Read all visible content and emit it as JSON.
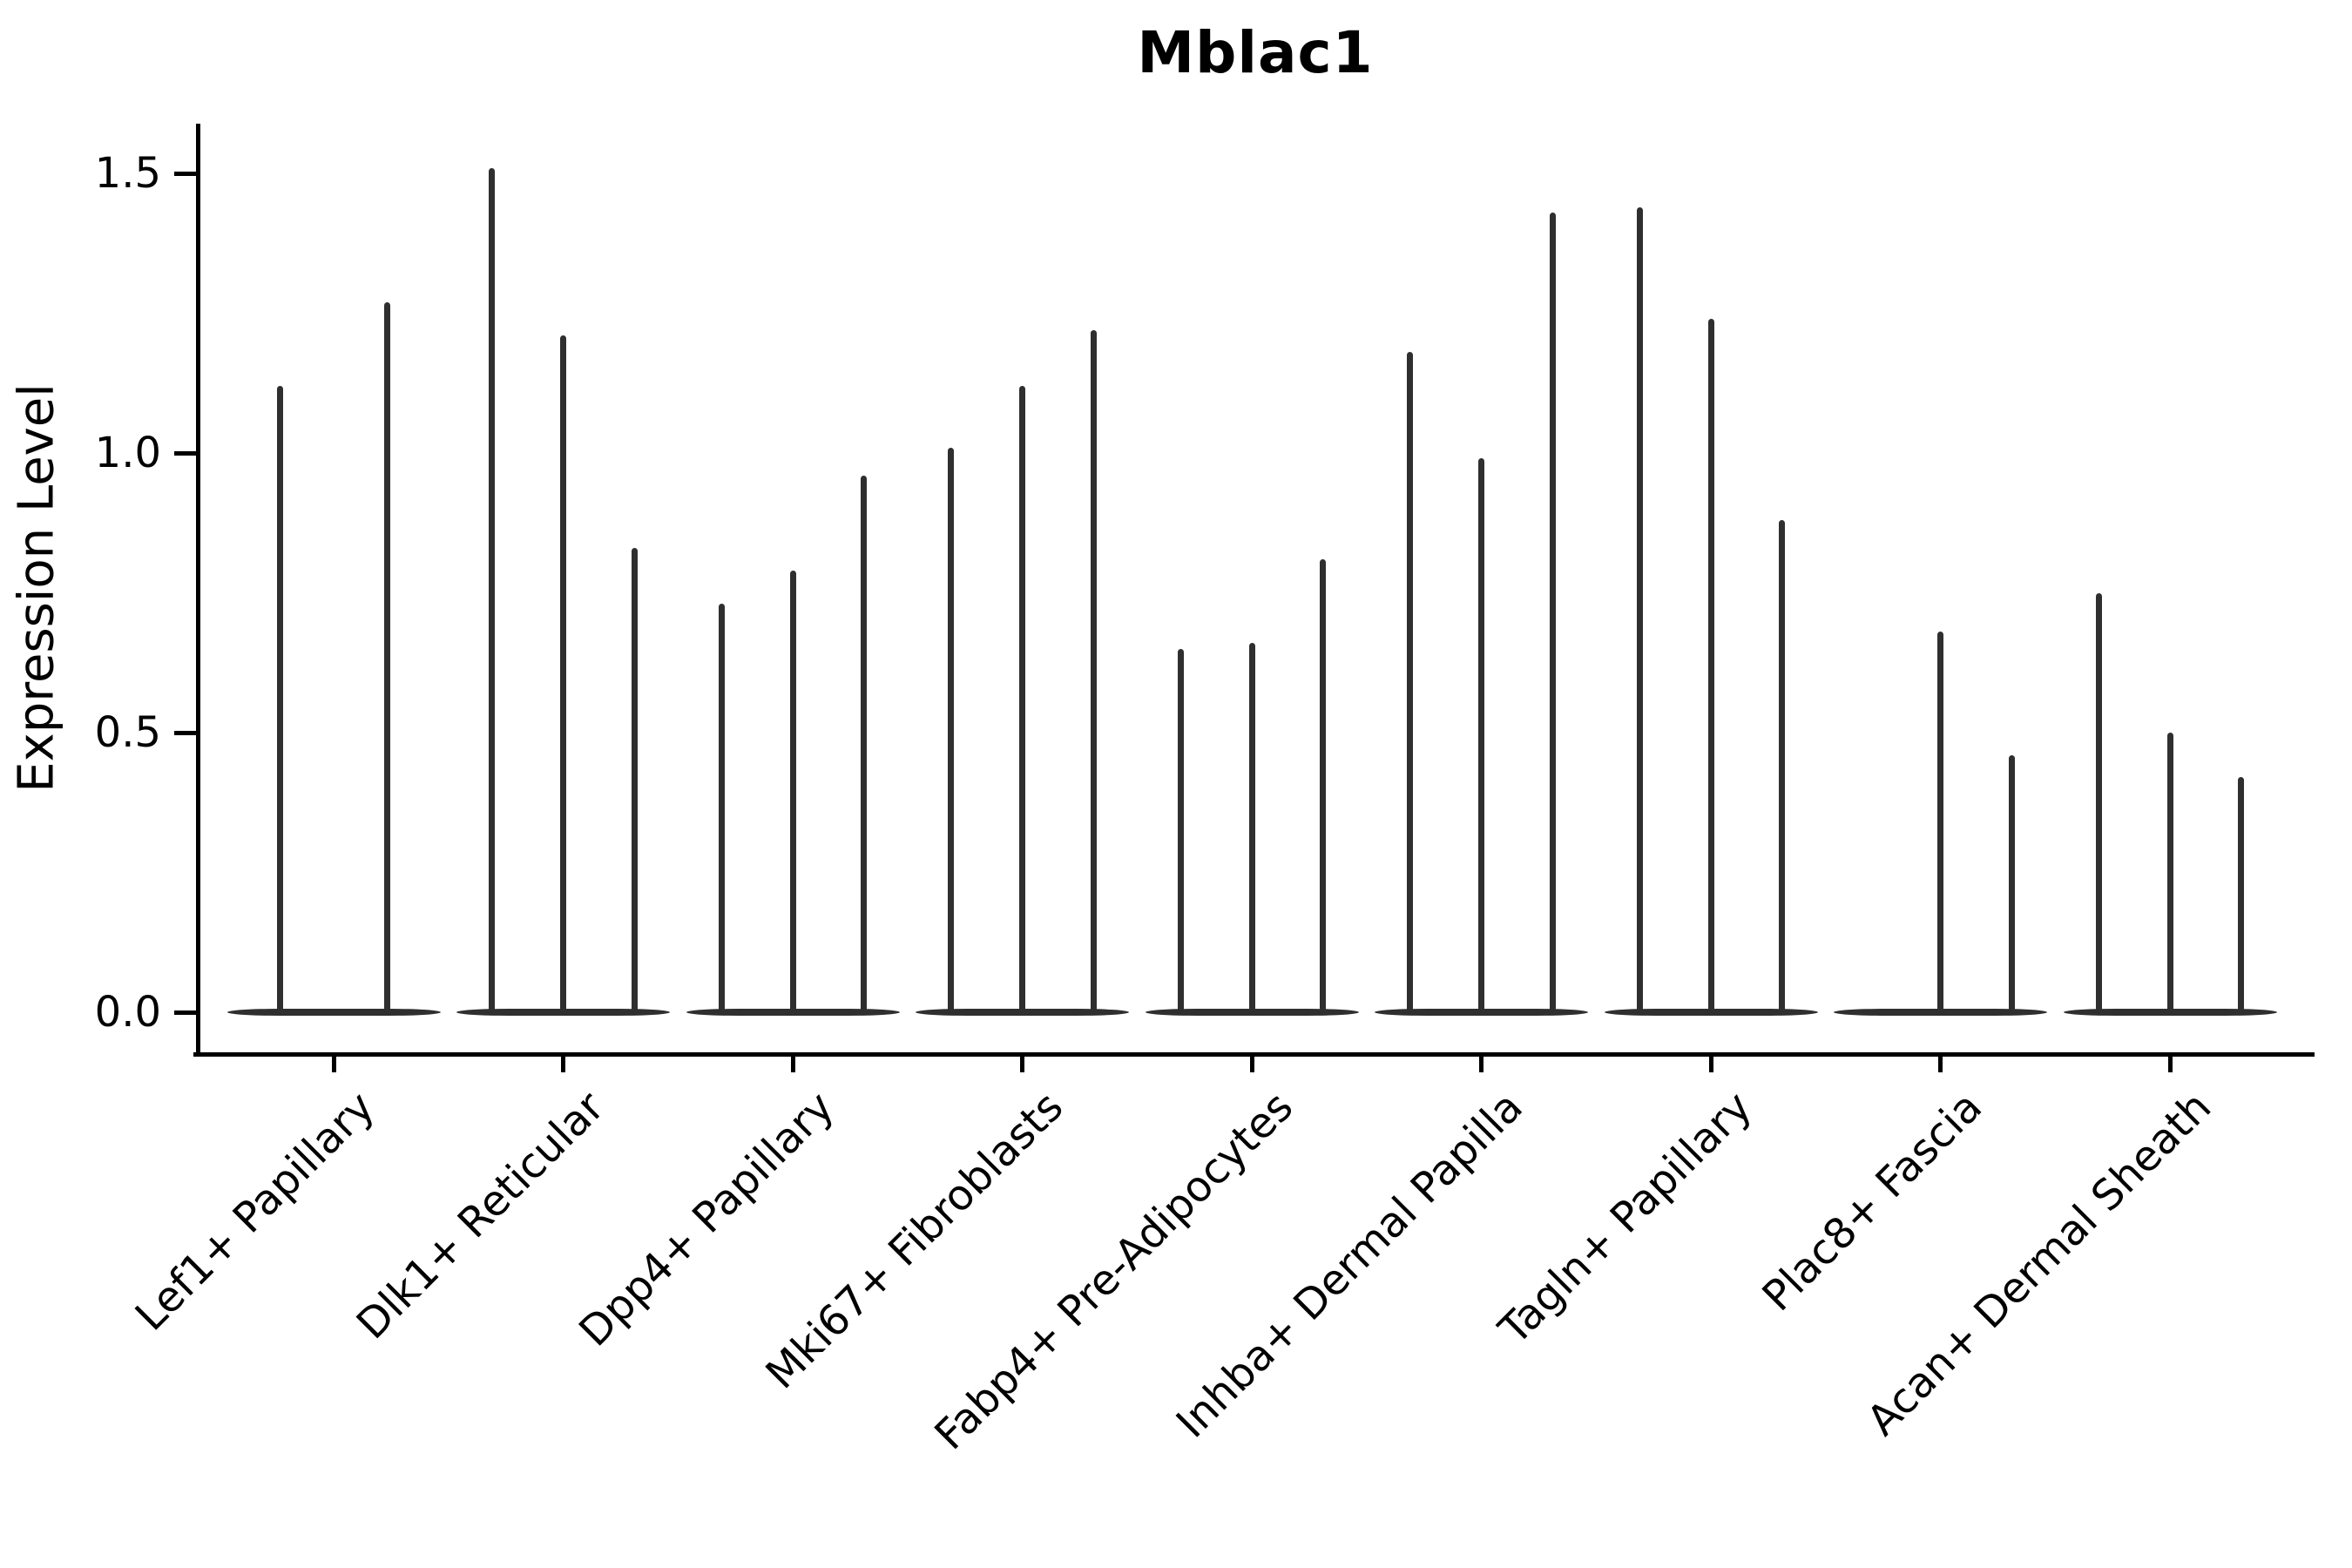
{
  "title": "Mblac1",
  "y_axis": {
    "label": "Expression Level",
    "tick_labels": [
      "0.0",
      "0.5",
      "1.0",
      "1.5"
    ]
  },
  "style": {
    "violin_color": "#2f2f2f",
    "axis_color": "#000000",
    "text_color": "#000000",
    "background": "#ffffff"
  },
  "chart_data": {
    "type": "violin",
    "title": "Mblac1",
    "xlabel": "",
    "ylabel": "Expression Level",
    "ylim": [
      -0.07,
      1.56
    ],
    "yticks": [
      0.0,
      0.5,
      1.0,
      1.5
    ],
    "ytick_labels": [
      "0.0",
      "0.5",
      "1.0",
      "1.5"
    ],
    "grid": false,
    "legend_position": "none",
    "x_tick_rotation_deg": 45,
    "description": "Very thin violins: nearly all density collapsed at 0 (flat horizontal base per group) with a narrow spike rising to each violin's maximum expression value.",
    "categories": [
      "Lef1+ Papillary",
      "Dlk1+ Reticular",
      "Dpp4+ Papillary",
      "Mki67+ Fibroblasts",
      "Fabp4+ Pre-Adipocytes",
      "Inhba+ Dermal Papilla",
      "Tagln+ Papillary",
      "Plac8+ Fascia",
      "Acan+ Dermal Sheath"
    ],
    "groups": [
      {
        "category": "Lef1+ Papillary",
        "violin_maxima": [
          1.12,
          1.27
        ]
      },
      {
        "category": "Dlk1+ Reticular",
        "violin_maxima": [
          1.51,
          1.21,
          0.83
        ]
      },
      {
        "category": "Dpp4+ Papillary",
        "violin_maxima": [
          0.73,
          0.79,
          0.96
        ]
      },
      {
        "category": "Mki67+ Fibroblasts",
        "violin_maxima": [
          1.01,
          1.12,
          1.22
        ]
      },
      {
        "category": "Fabp4+ Pre-Adipocytes",
        "violin_maxima": [
          0.65,
          0.66,
          0.81
        ]
      },
      {
        "category": "Inhba+ Dermal Papilla",
        "violin_maxima": [
          1.18,
          0.99,
          1.43
        ]
      },
      {
        "category": "Tagln+ Papillary",
        "violin_maxima": [
          1.44,
          1.24,
          0.88
        ]
      },
      {
        "category": "Plac8+ Fascia",
        "violin_maxima": [
          0.0,
          0.68,
          0.46
        ]
      },
      {
        "category": "Acan+ Dermal Sheath",
        "violin_maxima": [
          0.75,
          0.5,
          0.42
        ]
      }
    ]
  }
}
